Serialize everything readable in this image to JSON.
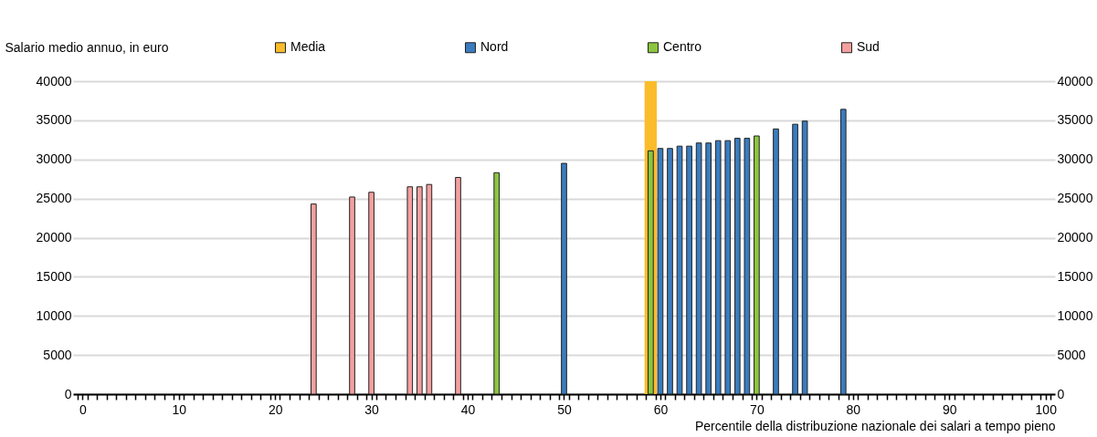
{
  "chart_data": {
    "type": "bar",
    "ylabel": "Salario medio annuo, in euro",
    "xlabel": "Percentile della distribuzione nazionale dei salari a tempo pieno",
    "series": [
      {
        "name": "Media",
        "color": "#fbbc2b",
        "x": [
          59
        ],
        "values": [
          40000
        ]
      },
      {
        "name": "Nord",
        "color": "#3a7cbf",
        "x": [
          50,
          60,
          61,
          62,
          63,
          64,
          65,
          66,
          67,
          68,
          69,
          72,
          74,
          75,
          79
        ],
        "values": [
          29500,
          31400,
          31400,
          31700,
          31700,
          32100,
          32100,
          32400,
          32400,
          32700,
          32700,
          33900,
          34500,
          34900,
          36400
        ]
      },
      {
        "name": "Centro",
        "color": "#8cc63f",
        "x": [
          43,
          59,
          70
        ],
        "values": [
          28300,
          31100,
          33000
        ]
      },
      {
        "name": "Sud",
        "color": "#f4a0a0",
        "x": [
          24,
          28,
          30,
          34,
          35,
          36,
          39
        ],
        "values": [
          24300,
          25200,
          25800,
          26500,
          26500,
          26800,
          27700
        ]
      }
    ],
    "xlim": [
      -0.5,
      100.5
    ],
    "xticks": [
      0,
      10,
      20,
      30,
      40,
      50,
      60,
      70,
      80,
      90,
      100,
      {
        "value": -0.5,
        "label": null
      },
      {
        "value": 0.5,
        "label": null
      },
      {
        "value": 1.5,
        "label": null
      },
      {
        "value": 2.5,
        "label": null
      },
      {
        "value": 3.5,
        "label": null
      },
      {
        "value": 4.5,
        "label": null
      },
      {
        "value": 5.5,
        "label": null
      },
      {
        "value": 6.5,
        "label": null
      },
      {
        "value": 7.5,
        "label": null
      },
      {
        "value": 8.5,
        "label": null
      },
      {
        "value": 9.5,
        "label": null
      },
      {
        "value": 10.5,
        "label": null
      },
      {
        "value": 11.5,
        "label": null
      },
      {
        "value": 12.5,
        "label": null
      },
      {
        "value": 13.5,
        "label": null
      },
      {
        "value": 14.5,
        "label": null
      },
      {
        "value": 15.5,
        "label": null
      },
      {
        "value": 16.5,
        "label": null
      },
      {
        "value": 17.5,
        "label": null
      },
      {
        "value": 18.5,
        "label": null
      },
      {
        "value": 19.5,
        "label": null
      },
      {
        "value": 20.5,
        "label": null
      },
      {
        "value": 21.5,
        "label": null
      },
      {
        "value": 22.5,
        "label": null
      },
      {
        "value": 23.5,
        "label": null
      },
      {
        "value": 24.5,
        "label": null
      },
      {
        "value": 25.5,
        "label": null
      },
      {
        "value": 26.5,
        "label": null
      },
      {
        "value": 27.5,
        "label": null
      },
      {
        "value": 28.5,
        "label": null
      },
      {
        "value": 29.5,
        "label": null
      },
      {
        "value": 30.5,
        "label": null
      },
      {
        "value": 31.5,
        "label": null
      },
      {
        "value": 32.5,
        "label": null
      },
      {
        "value": 33.5,
        "label": null
      },
      {
        "value": 34.5,
        "label": null
      },
      {
        "value": 35.5,
        "label": null
      },
      {
        "value": 36.5,
        "label": null
      },
      {
        "value": 37.5,
        "label": null
      },
      {
        "value": 38.5,
        "label": null
      },
      {
        "value": 39.5,
        "label": null
      },
      {
        "value": 40.5,
        "label": null
      },
      {
        "value": 41.5,
        "label": null
      },
      {
        "value": 42.5,
        "label": null
      },
      {
        "value": 43.5,
        "label": null
      },
      {
        "value": 44.5,
        "label": null
      },
      {
        "value": 45.5,
        "label": null
      },
      {
        "value": 46.5,
        "label": null
      },
      {
        "value": 47.5,
        "label": null
      },
      {
        "value": 48.5,
        "label": null
      },
      {
        "value": 49.5,
        "label": null
      },
      {
        "value": 50.5,
        "label": null
      },
      {
        "value": 51.5,
        "label": null
      },
      {
        "value": 52.5,
        "label": null
      },
      {
        "value": 53.5,
        "label": null
      },
      {
        "value": 54.5,
        "label": null
      },
      {
        "value": 55.5,
        "label": null
      },
      {
        "value": 56.5,
        "label": null
      },
      {
        "value": 57.5,
        "label": null
      },
      {
        "value": 58.5,
        "label": null
      },
      {
        "value": 59.5,
        "label": null
      },
      {
        "value": 60.5,
        "label": null
      },
      {
        "value": 61.5,
        "label": null
      },
      {
        "value": 62.5,
        "label": null
      },
      {
        "value": 63.5,
        "label": null
      },
      {
        "value": 64.5,
        "label": null
      },
      {
        "value": 65.5,
        "label": null
      },
      {
        "value": 66.5,
        "label": null
      },
      {
        "value": 67.5,
        "label": null
      },
      {
        "value": 68.5,
        "label": null
      },
      {
        "value": 69.5,
        "label": null
      },
      {
        "value": 70.5,
        "label": null
      },
      {
        "value": 71.5,
        "label": null
      },
      {
        "value": 72.5,
        "label": null
      },
      {
        "value": 73.5,
        "label": null
      },
      {
        "value": 74.5,
        "label": null
      },
      {
        "value": 75.5,
        "label": null
      },
      {
        "value": 76.5,
        "label": null
      },
      {
        "value": 77.5,
        "label": null
      },
      {
        "value": 78.5,
        "label": null
      },
      {
        "value": 79.5,
        "label": null
      },
      {
        "value": 80.5,
        "label": null
      },
      {
        "value": 81.5,
        "label": null
      },
      {
        "value": 82.5,
        "label": null
      },
      {
        "value": 83.5,
        "label": null
      },
      {
        "value": 84.5,
        "label": null
      },
      {
        "value": 85.5,
        "label": null
      },
      {
        "value": 86.5,
        "label": null
      },
      {
        "value": 87.5,
        "label": null
      },
      {
        "value": 88.5,
        "label": null
      },
      {
        "value": 89.5,
        "label": null
      },
      {
        "value": 90.5,
        "label": null
      },
      {
        "value": 91.5,
        "label": null
      },
      {
        "value": 92.5,
        "label": null
      },
      {
        "value": 93.5,
        "label": null
      },
      {
        "value": 94.5,
        "label": null
      },
      {
        "value": 95.5,
        "label": null
      },
      {
        "value": 96.5,
        "label": null
      },
      {
        "value": 97.5,
        "label": null
      },
      {
        "value": 98.5,
        "label": null
      },
      {
        "value": 99.5,
        "label": null
      },
      {
        "value": 100.5,
        "label": null
      }
    ],
    "ylim": [
      0,
      40000
    ],
    "yticks": [
      0,
      5000,
      10000,
      15000,
      20000,
      25000,
      30000,
      35000,
      40000
    ],
    "y2lim": [
      0,
      40000
    ],
    "y2ticks": [
      0,
      5000,
      10000,
      15000,
      20000,
      25000,
      30000,
      35000,
      40000
    ],
    "grid": "y",
    "legend": "top"
  }
}
